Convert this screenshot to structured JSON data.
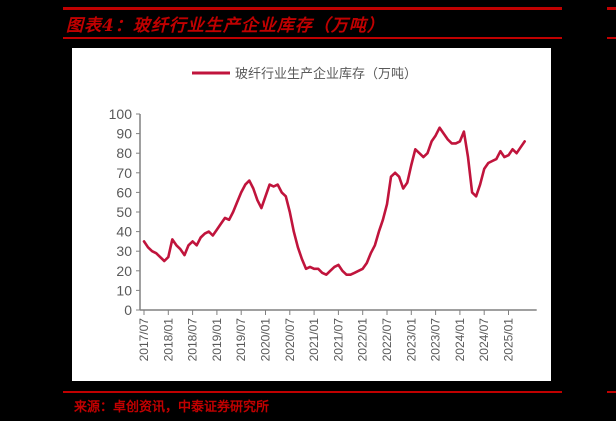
{
  "header": {
    "title": "图表4：玻纤行业生产企业库存（万吨）"
  },
  "footer": {
    "source": "来源：卓创资讯，中泰证券研究所"
  },
  "colors": {
    "background": "#000000",
    "accent_red": "#c00000",
    "series_line": "#c0143c",
    "axis": "#808080",
    "tick_label": "#595959"
  },
  "chart_data": {
    "type": "line",
    "title": "图表4：玻纤行业生产企业库存（万吨）",
    "xlabel": "",
    "ylabel": "",
    "ylim": [
      0,
      100
    ],
    "yticks": [
      0,
      10,
      20,
      30,
      40,
      50,
      60,
      70,
      80,
      90,
      100
    ],
    "grid": false,
    "legend_position": "top",
    "x_tick_labels": [
      "2017/07",
      "2018/01",
      "2018/07",
      "2019/01",
      "2019/07",
      "2020/01",
      "2020/07",
      "2021/01",
      "2021/07",
      "2022/01",
      "2022/07",
      "2023/01",
      "2023/07",
      "2024/01",
      "2024/07",
      "2025/01"
    ],
    "series": [
      {
        "name": "玻纤行业生产企业库存（万吨）",
        "start": "2017/07",
        "frequency": "monthly",
        "values": [
          35,
          32,
          30,
          29,
          27,
          25,
          27,
          36,
          33,
          31,
          28,
          33,
          35,
          33,
          37,
          39,
          40,
          38,
          41,
          44,
          47,
          46,
          50,
          55,
          60,
          64,
          66,
          62,
          56,
          52,
          58,
          64,
          63,
          64,
          60,
          58,
          50,
          40,
          32,
          26,
          21,
          22,
          21,
          21,
          19,
          18,
          20,
          22,
          23,
          20,
          18,
          18,
          19,
          20,
          21,
          24,
          29,
          33,
          40,
          46,
          54,
          68,
          70,
          68,
          62,
          65,
          74,
          82,
          80,
          78,
          80,
          86,
          89,
          93,
          90,
          87,
          85,
          85,
          86,
          91,
          78,
          60,
          58,
          64,
          72,
          75,
          76,
          77,
          81,
          78,
          79,
          82,
          80,
          83,
          86
        ]
      }
    ]
  }
}
